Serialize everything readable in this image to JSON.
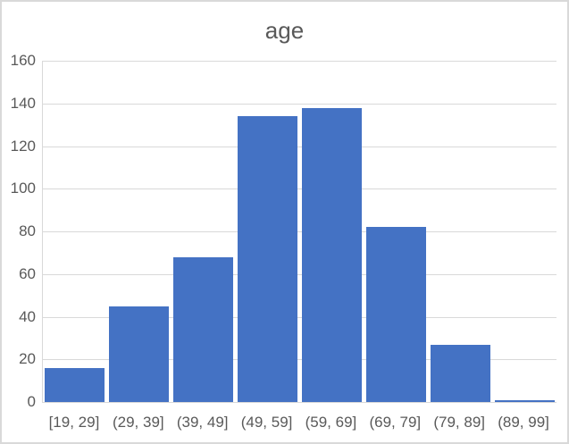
{
  "chart_data": {
    "type": "bar",
    "subtype": "histogram",
    "title": "age",
    "categories": [
      "[19, 29]",
      "(29, 39]",
      "(39, 49]",
      "(49, 59]",
      "(59, 69]",
      "(69, 79]",
      "(79, 89]",
      "(89, 99]"
    ],
    "values": [
      16,
      45,
      68,
      134,
      138,
      82,
      27,
      1
    ],
    "xlabel": "",
    "ylabel": "",
    "ylim": [
      0,
      160
    ],
    "yticks": [
      0,
      20,
      40,
      60,
      80,
      100,
      120,
      140,
      160
    ],
    "grid": true,
    "legend_position": "none",
    "colors": {
      "bar_fill": "#4472c4",
      "text": "#595959",
      "gridline": "#d9d9d9",
      "axis_line": "#d9d9d9",
      "frame_border": "#d9d9d9",
      "background": "#ffffff"
    }
  }
}
